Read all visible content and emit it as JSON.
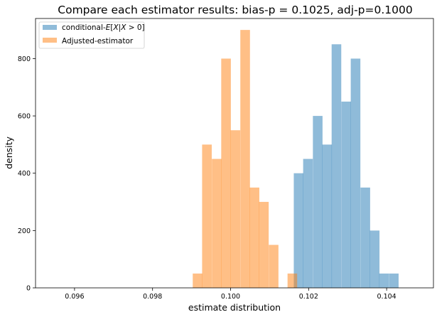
{
  "chart_data": {
    "type": "histogram",
    "title": "Compare each estimator results: bias-p = 0.1025, adj-p=0.1000",
    "xlabel": "estimate distribution",
    "ylabel": "density",
    "xlim": [
      0.095,
      0.1052
    ],
    "ylim": [
      0,
      940
    ],
    "x_ticks": [
      0.096,
      0.098,
      0.1,
      0.102,
      0.104
    ],
    "x_tick_labels": [
      "0.096",
      "0.098",
      "0.100",
      "0.102",
      "0.104"
    ],
    "y_ticks": [
      0,
      200,
      400,
      600,
      800
    ],
    "y_tick_labels": [
      "0",
      "200",
      "400",
      "600",
      "800"
    ],
    "bin_width": 0.000244,
    "grid": false,
    "legend_position": "top-left",
    "series": [
      {
        "name": "conditional-$E[X|X>0]$",
        "color": "#1f77b4",
        "alpha": 0.5,
        "bins": [
          [
            0.10162,
            400
          ],
          [
            0.10186,
            450
          ],
          [
            0.10211,
            600
          ],
          [
            0.10235,
            500
          ],
          [
            0.10259,
            850
          ],
          [
            0.10284,
            650
          ],
          [
            0.10308,
            800
          ],
          [
            0.10333,
            350
          ],
          [
            0.10357,
            200
          ],
          [
            0.10381,
            50
          ],
          [
            0.10406,
            50
          ]
        ]
      },
      {
        "name": "Adjusted-estimator",
        "color": "#ff7f0e",
        "alpha": 0.5,
        "bins": [
          [
            0.09903,
            50
          ],
          [
            0.09927,
            500
          ],
          [
            0.09952,
            450
          ],
          [
            0.09976,
            800
          ],
          [
            0.1,
            550
          ],
          [
            0.10025,
            900
          ],
          [
            0.10049,
            350
          ],
          [
            0.10073,
            300
          ],
          [
            0.10098,
            150
          ],
          [
            0.10146,
            50
          ]
        ]
      }
    ]
  }
}
